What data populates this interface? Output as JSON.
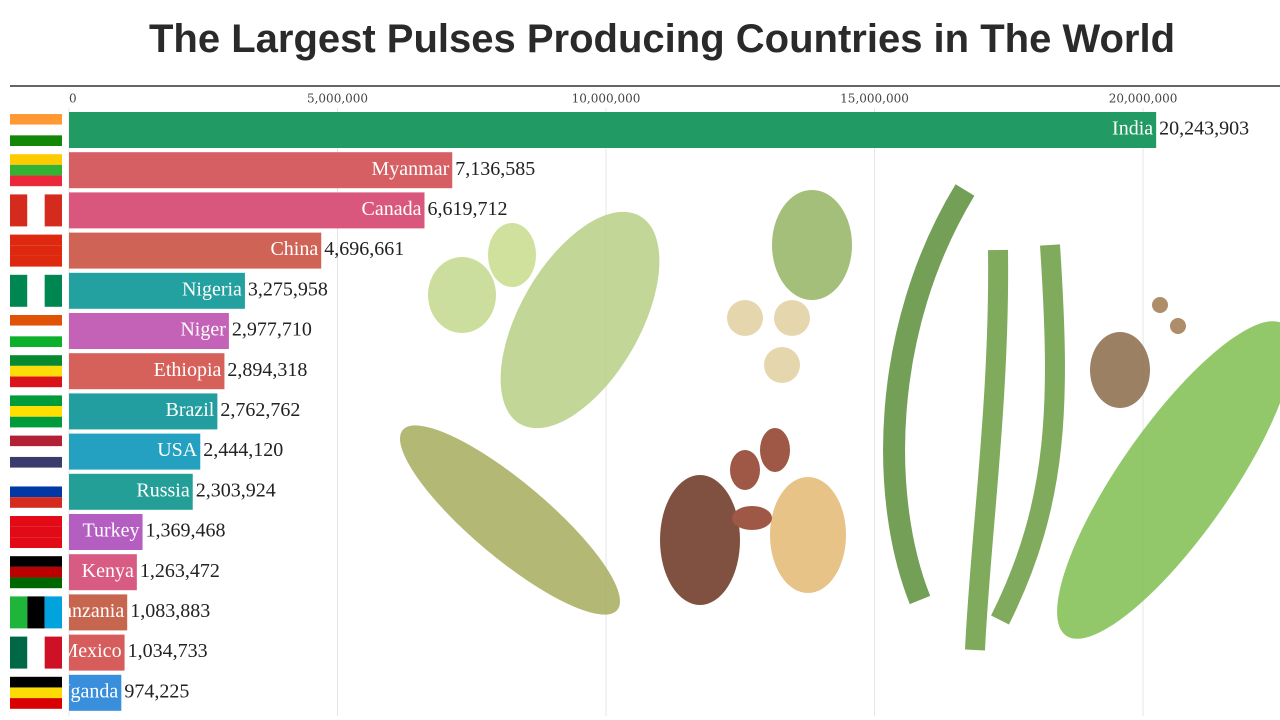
{
  "chart_data": {
    "type": "bar",
    "orientation": "horizontal",
    "title": "The Largest Pulses Producing Countries in The World",
    "categories": [
      "India",
      "Myanmar",
      "Canada",
      "China",
      "Nigeria",
      "Niger",
      "Ethiopia",
      "Brazil",
      "USA",
      "Russia",
      "Turkey",
      "Kenya",
      "Tanzania",
      "Mexico",
      "Uganda"
    ],
    "values": [
      20243903,
      7136585,
      6619712,
      4696661,
      3275958,
      2977710,
      2894318,
      2762762,
      2444120,
      2303924,
      1369468,
      1263472,
      1083883,
      1034733,
      974225
    ],
    "value_labels": [
      "20,243,903",
      "7,136,585",
      "6,619,712",
      "4,696,661",
      "3,275,958",
      "2,977,710",
      "2,894,318",
      "2,762,762",
      "2,444,120",
      "2,303,924",
      "1,369,468",
      "1,263,472",
      "1,083,883",
      "1,034,733",
      "974,225"
    ],
    "colors": [
      "#229a63",
      "#d65f63",
      "#d9577c",
      "#cf6355",
      "#23a0a0",
      "#c462b8",
      "#d6605a",
      "#229ea0",
      "#24a0c0",
      "#239f98",
      "#b55ec2",
      "#d85b84",
      "#c7664f",
      "#d75c5c",
      "#3a8fdc"
    ],
    "xlim": [
      0,
      22550000
    ],
    "xticks": [
      0,
      {
        "value": 5000000,
        "label": "5,000,000"
      },
      {
        "value": 10000000,
        "label": "10,000,000"
      },
      {
        "value": 15000000,
        "label": "15,000,000"
      },
      {
        "value": 20000000,
        "label": "20,000,000"
      }
    ],
    "grid": true
  }
}
